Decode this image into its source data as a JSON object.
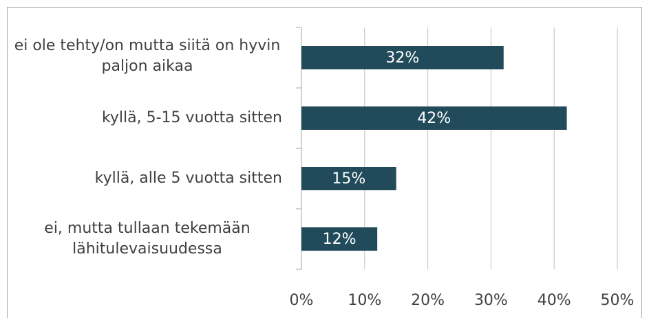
{
  "chart_data": {
    "type": "hbar",
    "categories": [
      "ei ole tehty/on mutta siitä on hyvin paljon aikaa",
      "kyllä, 5-15 vuotta sitten",
      "kyllä, alle 5 vuotta sitten",
      "ei, mutta tullaan tekemään lähitulevaisuudessa"
    ],
    "values": [
      32,
      42,
      15,
      12
    ],
    "value_labels": [
      "32%",
      "42%",
      "15%",
      "12%"
    ],
    "color": "#214b5a",
    "xlim": [
      0,
      50
    ],
    "xticks": [
      {
        "value": 0,
        "label": "0%"
      },
      {
        "value": 10,
        "label": "10%"
      },
      {
        "value": 20,
        "label": "20%"
      },
      {
        "value": 30,
        "label": "30%"
      },
      {
        "value": 40,
        "label": "40%"
      },
      {
        "value": 50,
        "label": "50%"
      }
    ],
    "grid": true
  }
}
